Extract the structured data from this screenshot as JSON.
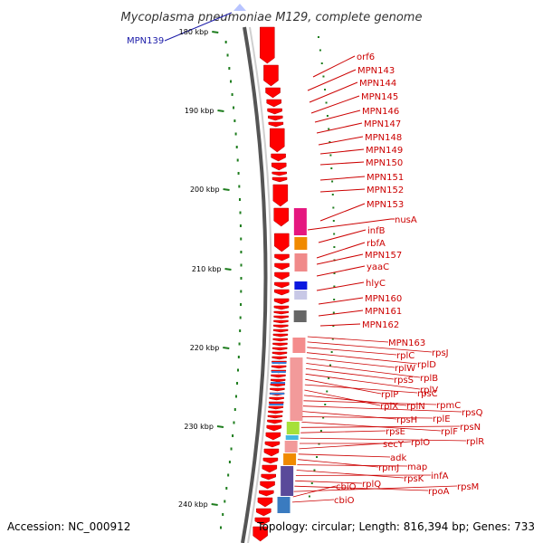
{
  "title": "Mycoplasma pneumoniae M129, complete genome",
  "accession": "Accession: NC_000912",
  "topology": "Topology: circular; Length: 816,394 bp; Genes: 733",
  "highlight_label": "MPN139",
  "ticks": [
    "180 kbp",
    "190 kbp",
    "200 kbp",
    "210 kbp",
    "220 kbp",
    "230 kbp",
    "240 kbp"
  ],
  "genes_upper": [
    "orf6",
    "MPN143",
    "MPN144",
    "MPN145",
    "MPN146",
    "MPN147",
    "MPN148",
    "MPN149",
    "MPN150",
    "MPN151",
    "MPN152",
    "MPN153",
    "nusA",
    "infB",
    "rbfA",
    "MPN157",
    "yaaC",
    "hlyC",
    "MPN160",
    "MPN161",
    "MPN162"
  ],
  "genes_ribo": [
    "MPN163",
    "rpsJ",
    "rplC",
    "rplD",
    "rplW",
    "rplB",
    "rpsS",
    "rplV",
    "rplP",
    "rpsC",
    "rplX",
    "rplN",
    "rpmC",
    "rpsQ",
    "rpsH",
    "rplE",
    "rplF",
    "rpsN",
    "rpsE",
    "rplR",
    "secY",
    "rplO",
    "adk",
    "rpmJ",
    "map",
    "rpsK",
    "infA",
    "rplQ",
    "rpoA",
    "rpsM",
    "cbiO",
    "cbiO"
  ],
  "colors": {
    "gene": "#ff0000",
    "label": "#cc0000",
    "backbone": "#888888",
    "tick": "#1e7d1e",
    "highlight": "#1a1aa8"
  }
}
